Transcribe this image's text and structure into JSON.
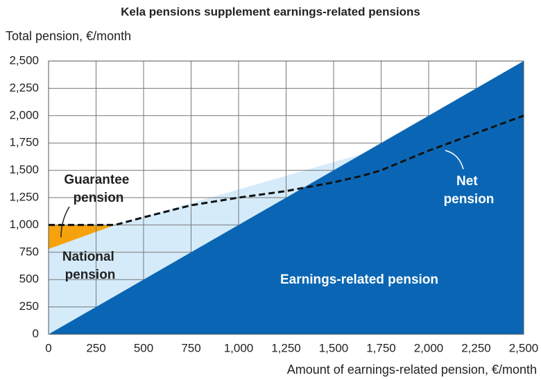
{
  "chart_data": {
    "type": "stacked-area",
    "title": "Kela pensions supplement earnings-related pensions",
    "y_label": "Total pension, €/month",
    "x_label": "Amount of earnings-related pension, €/month",
    "x": [
      0,
      350,
      1650,
      2500
    ],
    "series": [
      {
        "name": "Earnings-related pension",
        "color": "#0a66b4",
        "values": [
          0,
          350,
          1650,
          2500
        ]
      },
      {
        "name": "National pension",
        "color": "#d5ebfa",
        "values": [
          780,
          650,
          0,
          0
        ]
      },
      {
        "name": "Guarantee pension",
        "color": "#f5a20c",
        "values": [
          220,
          0,
          0,
          0
        ]
      }
    ],
    "net": {
      "name": "Net pension",
      "color": "#111111",
      "x": [
        0,
        350,
        500,
        750,
        1000,
        1250,
        1500,
        1650,
        1750,
        2000,
        2250,
        2500
      ],
      "values": [
        1000,
        1000,
        1070,
        1180,
        1250,
        1310,
        1390,
        1450,
        1500,
        1680,
        1840,
        2000
      ]
    },
    "xlim": [
      0,
      2500
    ],
    "ylim": [
      0,
      2500
    ],
    "xticks": [
      0,
      250,
      500,
      750,
      {
        "value": 1000,
        "label": "1,000"
      },
      {
        "value": 1250,
        "label": "1,250"
      },
      {
        "value": 1500,
        "label": "1,500"
      },
      {
        "value": 1750,
        "label": "1,750"
      },
      {
        "value": 2000,
        "label": "2,000"
      },
      {
        "value": 2250,
        "label": "2,250"
      },
      {
        "value": 2500,
        "label": "2,500"
      }
    ],
    "yticks": [
      0,
      250,
      500,
      750,
      {
        "value": 1000,
        "label": "1,000"
      },
      {
        "value": 1250,
        "label": "1,250"
      },
      {
        "value": 1500,
        "label": "1,500"
      },
      {
        "value": 1750,
        "label": "1,750"
      },
      {
        "value": 2000,
        "label": "2,000"
      },
      {
        "value": 2250,
        "label": "2,250"
      },
      {
        "value": 2500,
        "label": "2,500"
      }
    ],
    "grid": true
  }
}
